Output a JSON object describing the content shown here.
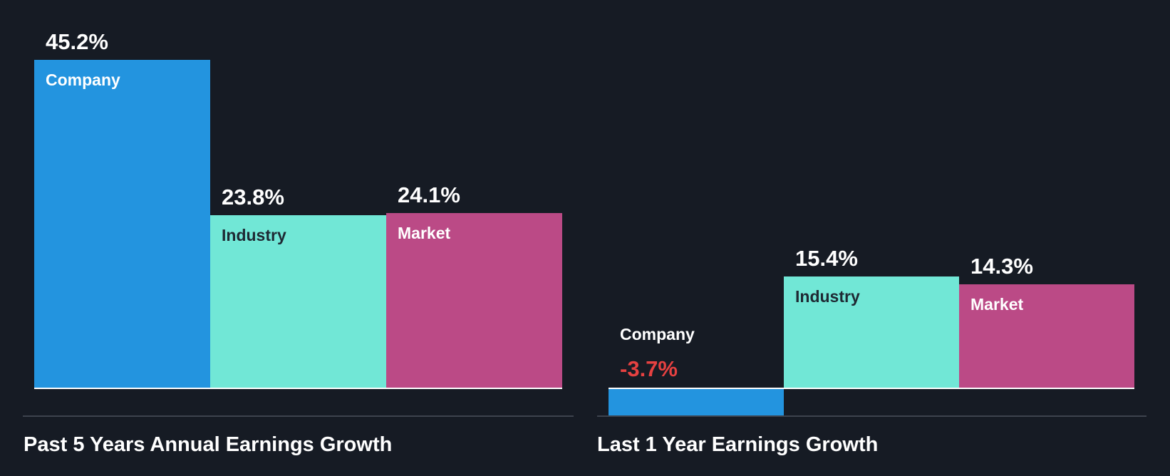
{
  "chart_data": [
    {
      "type": "bar",
      "title": "Past 5 Years Annual Earnings Growth",
      "categories": [
        "Company",
        "Industry",
        "Market"
      ],
      "values": [
        45.2,
        23.8,
        24.1
      ],
      "value_labels": [
        "45.2%",
        "23.8%",
        "24.1%"
      ],
      "unit": "%"
    },
    {
      "type": "bar",
      "title": "Last 1 Year Earnings Growth",
      "categories": [
        "Company",
        "Industry",
        "Market"
      ],
      "values": [
        -3.7,
        15.4,
        14.3
      ],
      "value_labels": [
        "-3.7%",
        "15.4%",
        "14.3%"
      ],
      "unit": "%"
    }
  ],
  "colors": {
    "Company": "#2394df",
    "Industry": "#71e7d6",
    "Market": "#bb4a86",
    "negative": "#e64141",
    "background": "#161b24"
  }
}
